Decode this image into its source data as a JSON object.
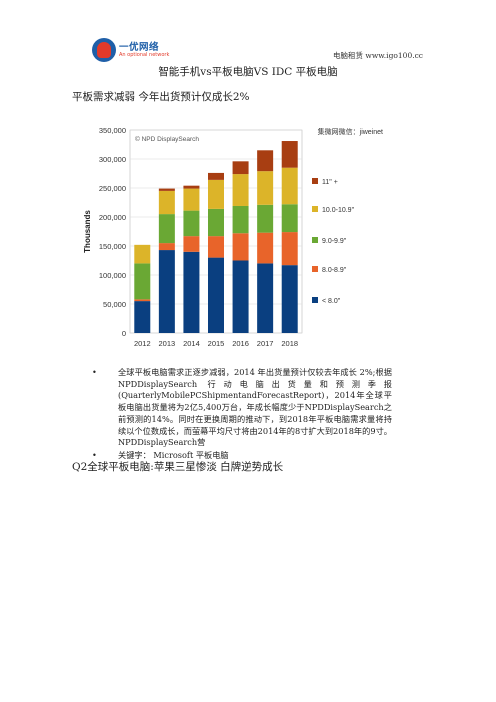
{
  "header": {
    "logo_name": "一优网络",
    "logo_tagline": "An optional network",
    "site": "电脑租赁 www.igo100.cc"
  },
  "title": "智能手机vs平板电脑VS IDC 平板电脑",
  "subtitle": "平板需求减弱 今年出货预计仅成长2%",
  "chart_data": {
    "type": "bar",
    "stacked": true,
    "source_label": "© NPD DisplaySearch",
    "watermark": "集微网微信：jiweinet",
    "ylabel": "Thousands",
    "ylim": [
      0,
      350000
    ],
    "yticks": [
      "0",
      "50,000",
      "100,000",
      "150,000",
      "200,000",
      "250,000",
      "300,000",
      "350,000"
    ],
    "categories": [
      "2012",
      "2013",
      "2014",
      "2015",
      "2016",
      "2017",
      "2018"
    ],
    "series": [
      {
        "name": "< 8.0\"",
        "color": "#0a3f80",
        "values": [
          55000,
          143000,
          140000,
          130000,
          125000,
          120000,
          117000
        ]
      },
      {
        "name": "8.0-8.9\"",
        "color": "#e8642a",
        "values": [
          3000,
          12000,
          27000,
          37000,
          47000,
          53000,
          57000
        ]
      },
      {
        "name": "9.0-9.9\"",
        "color": "#6aa834",
        "values": [
          62000,
          50000,
          44000,
          47000,
          47000,
          48000,
          48000
        ]
      },
      {
        "name": "10.0-10.9\"",
        "color": "#dcb429",
        "values": [
          32000,
          40000,
          38000,
          50000,
          55000,
          58000,
          63000
        ]
      },
      {
        "name": "11\" +",
        "color": "#a83e12",
        "values": [
          0,
          4000,
          5000,
          12000,
          22000,
          36000,
          46000
        ]
      }
    ],
    "legend_position": "right",
    "grid": true
  },
  "bullets": [
    "全球平板电脑需求正逐步减弱，2014 年出货量预计仅较去年成长 2%;根据NPDDisplaySearch 行动电脑出货量和预测季报(QuarterlyMobilePCShipmentandForecastReport)，2014年全球平板电脑出货量将为2亿5,400万台，年成长幅度少于NPDDisplaySearch之前预测的14%。同时在更换周期的推动下，到2018年平板电脑需求量将持续以个位数成长，而萤幕平均尺寸将由2014年的8寸扩大到2018年的9寸。 NPDDisplaySearch营",
    "关键字： Microsoft 平板电脑"
  ],
  "section2": "Q2全球平板电脑:苹果三星惨淡 白牌逆势成长"
}
